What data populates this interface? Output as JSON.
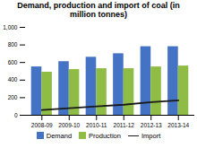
{
  "chart_data": {
    "type": "bar",
    "title": "Demand, production and import of coal (in\nmillion tonnes)",
    "categories": [
      "2008-09",
      "2009-10",
      "2010-11",
      "2011-12",
      "2012-13",
      "2013-14"
    ],
    "series": [
      {
        "name": "Demand",
        "type": "bar",
        "color": "#4472c4",
        "values": [
          550,
          610,
          660,
          700,
          780,
          780
        ]
      },
      {
        "name": "Production",
        "type": "bar",
        "color": "#8fbc45",
        "values": [
          490,
          520,
          530,
          530,
          550,
          560
        ]
      },
      {
        "name": "Import",
        "type": "line",
        "color": "#1a1a1a",
        "values": [
          60,
          80,
          100,
          120,
          150,
          170
        ]
      }
    ],
    "ylim": [
      0,
      1000
    ],
    "yticks": [
      0,
      200,
      400,
      600,
      800,
      {
        "value": 1000,
        "label": "1,000"
      }
    ],
    "grid": false,
    "legend": "bottom"
  }
}
